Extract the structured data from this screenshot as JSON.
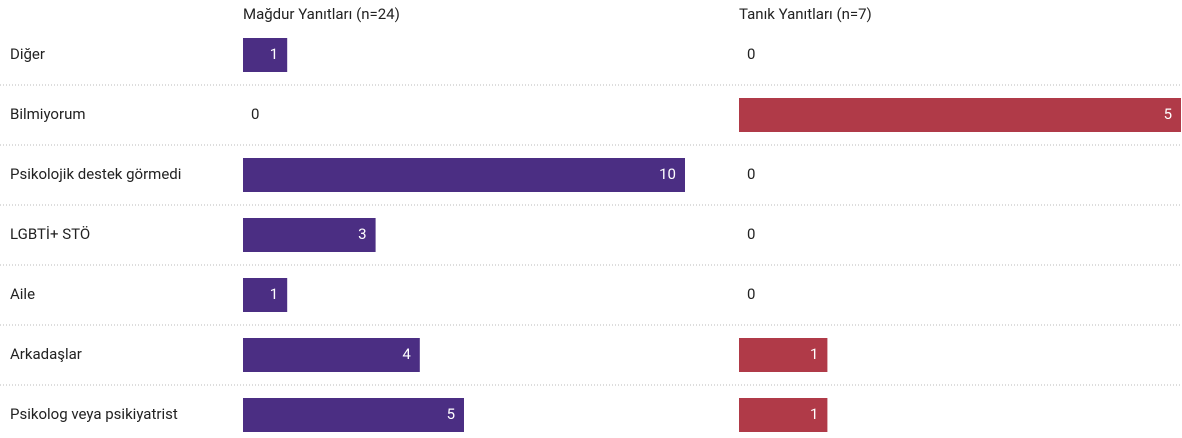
{
  "chart_data": {
    "type": "bar",
    "categories": [
      "Diğer",
      "Bilmiyorum",
      "Psikolojik destek görmedi",
      "LGBTİ+ STÖ",
      "Aile",
      "Arkadaşlar",
      "Psikolog veya psikiyatrist"
    ],
    "series": [
      {
        "name": "Mağdur Yanıtları (n=24)",
        "color": "#4b2e83",
        "values": [
          1,
          0,
          10,
          3,
          1,
          4,
          5
        ]
      },
      {
        "name": "Tanık Yanıtları (n=7)",
        "color": "#b03a48",
        "values": [
          0,
          5,
          0,
          0,
          0,
          1,
          1
        ]
      }
    ]
  }
}
